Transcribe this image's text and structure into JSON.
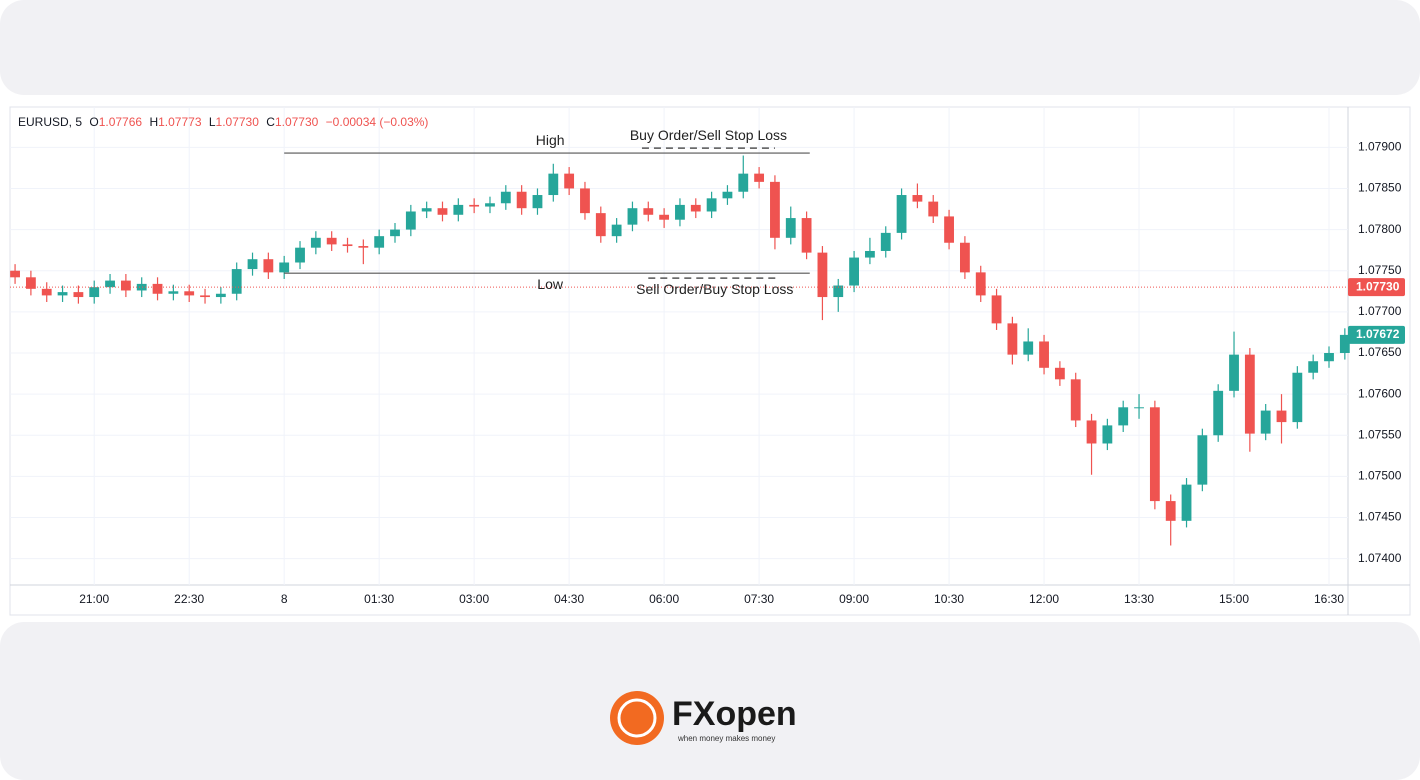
{
  "chart_data": {
    "type": "candlestick",
    "header": {
      "symbol": "EURUSD, 5",
      "o_key": "O",
      "o": "1.07766",
      "h_key": "H",
      "h": "1.07773",
      "l_key": "L",
      "l": "1.07730",
      "c_key": "C",
      "c": "1.07730",
      "change": "−0.00034 (−0.03%)"
    },
    "x": [
      -4.25,
      -4,
      -3.75,
      -3.5,
      -3.25,
      -3,
      -2.75,
      -2.5,
      -2.25,
      -2,
      -1.75,
      -1.5,
      -1.25,
      -1,
      -0.75,
      -0.5,
      -0.25,
      0,
      0.25,
      0.5,
      0.75,
      1,
      1.25,
      1.5,
      1.75,
      2,
      2.25,
      2.5,
      2.75,
      3,
      3.25,
      3.5,
      3.75,
      4,
      4.25,
      4.5,
      4.75,
      5,
      5.25,
      5.5,
      5.75,
      6,
      6.25,
      6.5,
      6.75,
      7,
      7.25,
      7.5,
      7.75,
      8,
      8.25,
      8.5,
      8.75,
      9,
      9.25,
      9.5,
      9.75,
      10,
      10.25,
      10.5,
      10.75,
      11,
      11.25,
      11.5,
      11.75,
      12,
      12.25,
      12.5,
      12.75,
      13,
      13.25,
      13.5,
      13.75,
      14,
      14.25,
      14.5,
      14.75,
      15,
      15.25,
      15.5,
      15.75,
      16,
      16.25,
      16.5,
      16.75
    ],
    "open": [
      1.0775,
      1.07742,
      1.07728,
      1.0772,
      1.07724,
      1.07718,
      1.0773,
      1.07738,
      1.07726,
      1.07734,
      1.07722,
      1.07725,
      1.0772,
      1.07718,
      1.07722,
      1.07752,
      1.07764,
      1.07748,
      1.0776,
      1.07778,
      1.0779,
      1.07782,
      1.0778,
      1.07778,
      1.07792,
      1.078,
      1.07822,
      1.07826,
      1.07818,
      1.0783,
      1.07828,
      1.07832,
      1.07846,
      1.07826,
      1.07842,
      1.07868,
      1.0785,
      1.0782,
      1.07792,
      1.07806,
      1.07826,
      1.07818,
      1.07812,
      1.0783,
      1.07822,
      1.07838,
      1.07846,
      1.07868,
      1.07858,
      1.0779,
      1.07814,
      1.07772,
      1.07718,
      1.07732,
      1.07766,
      1.07774,
      1.07796,
      1.07842,
      1.07834,
      1.07816,
      1.07784,
      1.07748,
      1.0772,
      1.07686,
      1.07648,
      1.07664,
      1.07632,
      1.07618,
      1.07568,
      1.0754,
      1.07562,
      1.07584,
      1.07584,
      1.0747,
      1.07446,
      1.0749,
      1.0755,
      1.07604,
      1.07648,
      1.07552,
      1.0758,
      1.07566,
      1.07626,
      1.0764,
      1.0765
    ],
    "high": [
      1.07758,
      1.0775,
      1.07736,
      1.07732,
      1.07732,
      1.07738,
      1.07746,
      1.07746,
      1.07742,
      1.07742,
      1.07733,
      1.07733,
      1.07728,
      1.0773,
      1.0776,
      1.07772,
      1.07772,
      1.07768,
      1.07786,
      1.07798,
      1.07798,
      1.0779,
      1.07788,
      1.078,
      1.07808,
      1.0783,
      1.07834,
      1.07834,
      1.07838,
      1.07838,
      1.0784,
      1.07854,
      1.07854,
      1.0785,
      1.0788,
      1.07876,
      1.07858,
      1.07828,
      1.07814,
      1.07834,
      1.07834,
      1.07826,
      1.07838,
      1.07838,
      1.07846,
      1.07854,
      1.0789,
      1.07876,
      1.07866,
      1.07828,
      1.07822,
      1.0778,
      1.0774,
      1.07774,
      1.0779,
      1.07804,
      1.0785,
      1.07856,
      1.07842,
      1.07824,
      1.07792,
      1.07756,
      1.07728,
      1.07694,
      1.0768,
      1.07672,
      1.0764,
      1.07626,
      1.07576,
      1.0757,
      1.07592,
      1.076,
      1.07592,
      1.07478,
      1.07498,
      1.07558,
      1.07612,
      1.07676,
      1.07656,
      1.07588,
      1.076,
      1.07634,
      1.07648,
      1.07658,
      1.0768
    ],
    "low": [
      1.07734,
      1.0772,
      1.07712,
      1.07712,
      1.0771,
      1.0771,
      1.07722,
      1.07718,
      1.07718,
      1.07714,
      1.07714,
      1.07712,
      1.0771,
      1.0771,
      1.07714,
      1.07744,
      1.0774,
      1.0774,
      1.07752,
      1.0777,
      1.07774,
      1.07772,
      1.07758,
      1.0777,
      1.07784,
      1.07792,
      1.07814,
      1.0781,
      1.0781,
      1.0782,
      1.0782,
      1.07824,
      1.07818,
      1.07818,
      1.07834,
      1.07842,
      1.07812,
      1.07784,
      1.07784,
      1.07798,
      1.0781,
      1.07802,
      1.07804,
      1.07814,
      1.07814,
      1.0783,
      1.07838,
      1.0785,
      1.07776,
      1.07782,
      1.07764,
      1.0769,
      1.077,
      1.07724,
      1.07758,
      1.07766,
      1.07788,
      1.07826,
      1.07808,
      1.07776,
      1.0774,
      1.07712,
      1.07678,
      1.07636,
      1.0764,
      1.07624,
      1.0761,
      1.0756,
      1.07502,
      1.07532,
      1.07554,
      1.0757,
      1.0746,
      1.07416,
      1.07438,
      1.07482,
      1.07542,
      1.07596,
      1.0753,
      1.07544,
      1.0754,
      1.07558,
      1.07618,
      1.07632,
      1.07642
    ],
    "close": [
      1.07742,
      1.07728,
      1.0772,
      1.07724,
      1.07718,
      1.0773,
      1.07738,
      1.07726,
      1.07734,
      1.07722,
      1.07725,
      1.0772,
      1.07718,
      1.07722,
      1.07752,
      1.07764,
      1.07748,
      1.0776,
      1.07778,
      1.0779,
      1.07782,
      1.0778,
      1.07778,
      1.07792,
      1.078,
      1.07822,
      1.07826,
      1.07818,
      1.0783,
      1.07828,
      1.07832,
      1.07846,
      1.07826,
      1.07842,
      1.07868,
      1.0785,
      1.0782,
      1.07792,
      1.07806,
      1.07826,
      1.07818,
      1.07812,
      1.0783,
      1.07822,
      1.07838,
      1.07846,
      1.07868,
      1.07858,
      1.0779,
      1.07814,
      1.07772,
      1.07718,
      1.07732,
      1.07766,
      1.07774,
      1.07796,
      1.07842,
      1.07834,
      1.07816,
      1.07784,
      1.07748,
      1.0772,
      1.07686,
      1.07648,
      1.07664,
      1.07632,
      1.07618,
      1.07568,
      1.0754,
      1.07562,
      1.07584,
      1.07584,
      1.0747,
      1.07446,
      1.0749,
      1.0755,
      1.07604,
      1.07648,
      1.07552,
      1.0758,
      1.07566,
      1.07626,
      1.0764,
      1.0765,
      1.07672
    ],
    "up_color": "#26a69a",
    "down_color": "#ef5350",
    "xlim": [
      -4.33,
      16.8
    ],
    "ylim": [
      1.07368,
      1.07949
    ],
    "xticks": [
      {
        "value": -3,
        "label": "21:00"
      },
      {
        "value": -1.5,
        "label": "22:30"
      },
      {
        "value": 0,
        "label": "8"
      },
      {
        "value": 1.5,
        "label": "01:30"
      },
      {
        "value": 3,
        "label": "03:00"
      },
      {
        "value": 4.5,
        "label": "04:30"
      },
      {
        "value": 6,
        "label": "06:00"
      },
      {
        "value": 7.5,
        "label": "07:30"
      },
      {
        "value": 9,
        "label": "09:00"
      },
      {
        "value": 10.5,
        "label": "10:30"
      },
      {
        "value": 12,
        "label": "12:00"
      },
      {
        "value": 13.5,
        "label": "13:30"
      },
      {
        "value": 15,
        "label": "15:00"
      },
      {
        "value": 16.5,
        "label": "16:30"
      }
    ],
    "yticks": [
      {
        "value": 1.079,
        "label": "1.07900"
      },
      {
        "value": 1.0785,
        "label": "1.07850"
      },
      {
        "value": 1.078,
        "label": "1.07800"
      },
      {
        "value": 1.0775,
        "label": "1.07750"
      },
      {
        "value": 1.077,
        "label": "1.07700"
      },
      {
        "value": 1.0765,
        "label": "1.07650"
      },
      {
        "value": 1.076,
        "label": "1.07600"
      },
      {
        "value": 1.0755,
        "label": "1.07550"
      },
      {
        "value": 1.075,
        "label": "1.07500"
      },
      {
        "value": 1.0745,
        "label": "1.07450"
      },
      {
        "value": 1.074,
        "label": "1.07400"
      }
    ],
    "grid": true,
    "price_line": {
      "value": 1.0773,
      "label": "1.07730",
      "color": "#ef5350"
    },
    "last_price": {
      "value": 1.07672,
      "label": "1.07672",
      "color": "#26a69a"
    },
    "annotations": [
      {
        "label": "High",
        "value": 1.07893,
        "x": [
          0,
          8.3
        ],
        "dashed": false,
        "text_x": 4.2,
        "above": true
      },
      {
        "label": "Low",
        "value": 1.07747,
        "x": [
          0,
          8.3
        ],
        "dashed": false,
        "text_x": 4.2,
        "above": false
      },
      {
        "label": "Buy Order/Sell Stop Loss",
        "value": 1.07899,
        "x": [
          5.65,
          7.75
        ],
        "dashed": true,
        "text_x": 6.7,
        "above": true
      },
      {
        "label": "Sell Order/Buy Stop Loss",
        "value": 1.07741,
        "x": [
          5.75,
          7.83
        ],
        "dashed": true,
        "text_x": 6.8,
        "above": false
      }
    ]
  },
  "logo": {
    "name": "FXopen",
    "tagline": "when money makes money"
  }
}
